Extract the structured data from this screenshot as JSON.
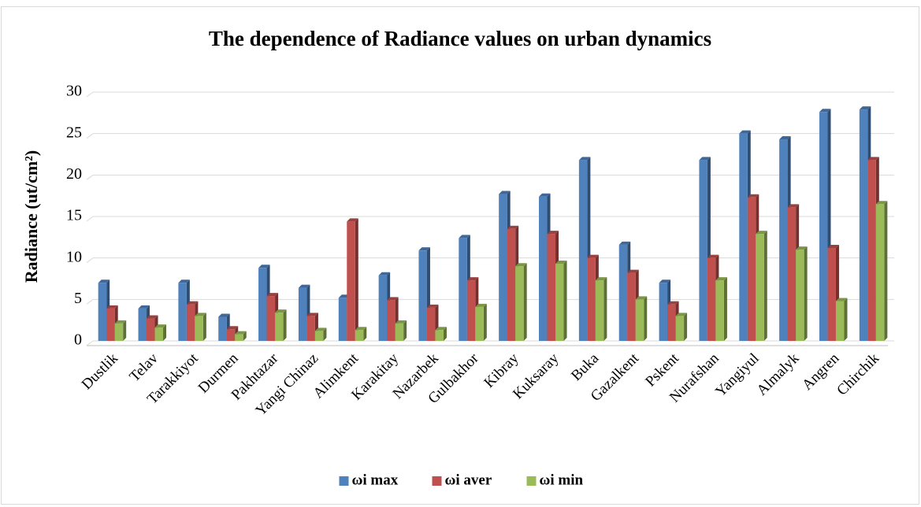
{
  "chart_data": {
    "type": "bar",
    "title": "The dependence of Radiance values on urban dynamics",
    "y_label": "Radiance (ut/cm²)",
    "categories": [
      "Dustlik",
      "Telav",
      "Tarakkiyot",
      "Durmen",
      "Pakhtazar",
      "Yangi Chinaz",
      "Alimkent",
      "Karakitay",
      "Nazarbek",
      "Gulbakhor",
      "Kibray",
      "Kuksaray",
      "Buka",
      "Gazalkent",
      "Pskent",
      "Nurafshan",
      "Yangiyul",
      "Almalyk",
      "Angren",
      "Chirchik"
    ],
    "series": [
      {
        "name": "ωi max",
        "color": "#4f81bd",
        "values": [
          7,
          3.9,
          7,
          2.9,
          8.8,
          6.4,
          5.2,
          7.9,
          10.9,
          12.4,
          17.7,
          17.4,
          21.8,
          11.6,
          7,
          21.8,
          25,
          24.3,
          27.6,
          27.9
        ]
      },
      {
        "name": "ωi aver",
        "color": "#c0504d",
        "values": [
          3.9,
          2.7,
          4.4,
          1.4,
          5.4,
          3,
          14.4,
          4.9,
          4,
          7.3,
          13.5,
          12.9,
          10,
          8.2,
          4.4,
          10,
          17.3,
          16.1,
          11.2,
          21.8
        ]
      },
      {
        "name": "ωi min",
        "color": "#9bbb59",
        "values": [
          2.1,
          1.6,
          3,
          0.8,
          3.4,
          1.2,
          1.3,
          2.1,
          1.3,
          4.1,
          9,
          9.3,
          7.3,
          5,
          3,
          7.3,
          12.9,
          11,
          4.8,
          16.5
        ]
      }
    ],
    "ylim": [
      0,
      30
    ],
    "yticks": [
      0,
      5,
      10,
      15,
      20,
      25,
      30
    ],
    "grid": true,
    "legend": "bottom"
  }
}
